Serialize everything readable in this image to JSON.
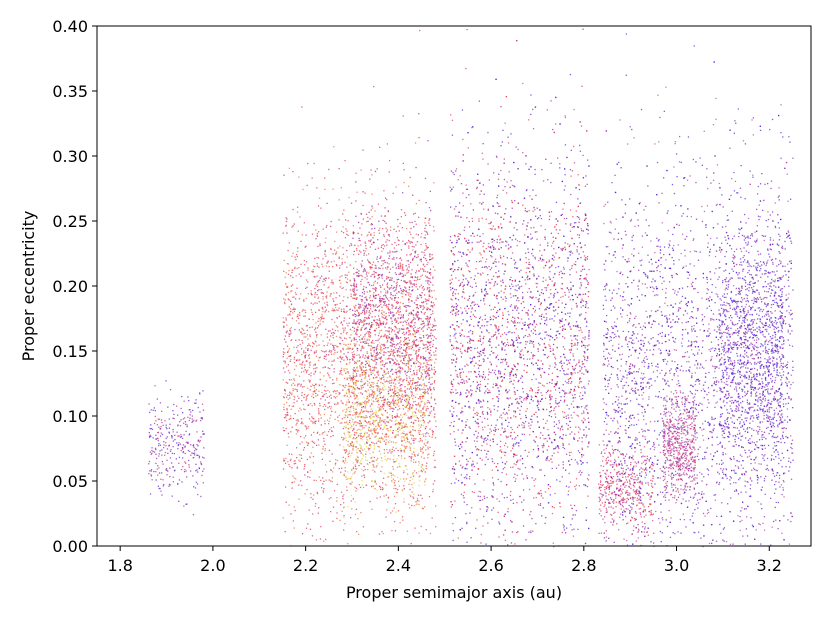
{
  "chart_data": {
    "type": "scatter",
    "title": "",
    "xlabel": "Proper semimajor axis (au)",
    "ylabel": "Proper eccentricity",
    "xlim": [
      1.75,
      3.29
    ],
    "ylim": [
      0.0,
      0.4
    ],
    "x_ticks": [
      1.8,
      2.0,
      2.2,
      2.4,
      2.6,
      2.8,
      3.0,
      3.2
    ],
    "x_tick_labels": [
      "1.8",
      "2.0",
      "2.2",
      "2.4",
      "2.6",
      "2.8",
      "3.0",
      "3.2"
    ],
    "y_ticks": [
      0.0,
      0.05,
      0.1,
      0.15,
      0.2,
      0.25,
      0.3,
      0.35,
      0.4
    ],
    "y_tick_labels": [
      "0.00",
      "0.05",
      "0.10",
      "0.15",
      "0.20",
      "0.25",
      "0.30",
      "0.35",
      "0.40"
    ],
    "grid": false,
    "legend": "none",
    "point_colors": [
      "#e8334a",
      "#c8246e",
      "#7a1fb0",
      "#4a1ad8",
      "#b43fa0",
      "#e0d23a",
      "#e86a3a"
    ],
    "density_regions": [
      {
        "x_range": [
          1.86,
          1.98
        ],
        "y_center": 0.077,
        "y_spread": 0.02,
        "count": 320,
        "colors": [
          "#7a1fb0",
          "#4a1ad8",
          "#c8246e"
        ]
      },
      {
        "x_range": [
          2.15,
          2.48
        ],
        "y_center": 0.14,
        "y_spread": 0.06,
        "count": 2600,
        "colors": [
          "#e8334a",
          "#c8246e",
          "#e86a3a"
        ]
      },
      {
        "x_range": [
          2.28,
          2.46
        ],
        "y_center": 0.1,
        "y_spread": 0.03,
        "count": 900,
        "colors": [
          "#e0d23a",
          "#e86a3a"
        ]
      },
      {
        "x_range": [
          2.3,
          2.47
        ],
        "y_center": 0.18,
        "y_spread": 0.04,
        "count": 1100,
        "colors": [
          "#c8246e",
          "#e8334a",
          "#7a1fb0"
        ]
      },
      {
        "x_range": [
          2.51,
          2.81
        ],
        "y_center": 0.15,
        "y_spread": 0.075,
        "count": 3200,
        "colors": [
          "#c8246e",
          "#e8334a",
          "#7a1fb0",
          "#4a1ad8"
        ]
      },
      {
        "x_range": [
          2.83,
          2.95
        ],
        "y_center": 0.045,
        "y_spread": 0.015,
        "count": 380,
        "colors": [
          "#c8246e",
          "#e8334a"
        ]
      },
      {
        "x_range": [
          2.84,
          3.25
        ],
        "y_center": 0.13,
        "y_spread": 0.08,
        "count": 3200,
        "colors": [
          "#4a1ad8",
          "#7a1fb0",
          "#b43fa0"
        ]
      },
      {
        "x_range": [
          2.97,
          3.04
        ],
        "y_center": 0.078,
        "y_spread": 0.02,
        "count": 520,
        "colors": [
          "#c8246e",
          "#b43fa0"
        ]
      },
      {
        "x_range": [
          3.09,
          3.23
        ],
        "y_center": 0.15,
        "y_spread": 0.045,
        "count": 1100,
        "colors": [
          "#4a1ad8",
          "#7a1fb0"
        ]
      }
    ]
  }
}
